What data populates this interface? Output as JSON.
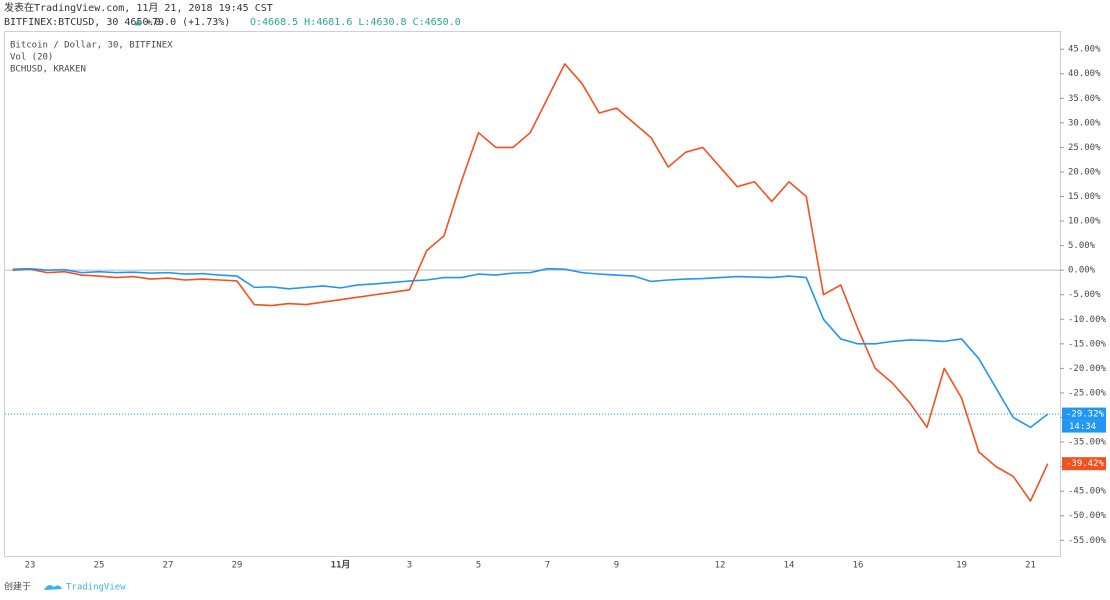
{
  "header": {
    "published": "发表在TradingView.com, 11月 21, 2018 19:45 CST",
    "symbol": "BITFINEX:BTCUSD, 30 4650.0",
    "arrow": "▲",
    "change": "+79.0 (+1.73%)",
    "ohlc": "O:4668.5 H:4681.6 L:4630.8 C:4650.0"
  },
  "footer": {
    "created": "创建于",
    "brand": "TradingView"
  },
  "chart_data": {
    "type": "line",
    "volume_label": "Vol (20)",
    "countdown": "14:34",
    "categories": [
      null,
      "23",
      null,
      null,
      null,
      "25",
      null,
      null,
      null,
      "27",
      null,
      null,
      null,
      "29",
      null,
      null,
      null,
      null,
      null,
      "11月",
      null,
      null,
      null,
      "3",
      null,
      null,
      null,
      "5",
      null,
      null,
      null,
      "7",
      null,
      null,
      null,
      "9",
      null,
      null,
      null,
      null,
      null,
      "12",
      null,
      null,
      null,
      "14",
      null,
      null,
      null,
      "16",
      null,
      null,
      null,
      null,
      null,
      "19",
      null,
      null,
      null,
      "21",
      null
    ],
    "ylim": [
      -58.2,
      48.5
    ],
    "yticks": [
      {
        "value": 45,
        "label": "45.00%"
      },
      {
        "value": 40,
        "label": "40.00%"
      },
      {
        "value": 35,
        "label": "35.00%"
      },
      {
        "value": 30,
        "label": "30.00%"
      },
      {
        "value": 25,
        "label": "25.00%"
      },
      {
        "value": 20,
        "label": "20.00%"
      },
      {
        "value": 15,
        "label": "15.00%"
      },
      {
        "value": 10,
        "label": "10.00%"
      },
      {
        "value": 5,
        "label": "5.00%"
      },
      {
        "value": 0,
        "label": "0.00%"
      },
      {
        "value": -5,
        "label": "-5.00%"
      },
      {
        "value": -10,
        "label": "-10.00%"
      },
      {
        "value": -15,
        "label": "-15.00%"
      },
      {
        "value": -20,
        "label": "-20.00%"
      },
      {
        "value": -25,
        "label": "-25.00%"
      },
      {
        "value": -30,
        "label": "-30.00%"
      },
      {
        "value": -35,
        "label": "-35.00%"
      },
      {
        "value": -40,
        "label": "-40.00%"
      },
      {
        "value": -45,
        "label": "-45.00%"
      },
      {
        "value": -50,
        "label": "-50.00%"
      },
      {
        "value": -55,
        "label": "-55.00%"
      }
    ],
    "series": [
      {
        "name": "Bitcoin / Dollar, 30, BITFINEX",
        "color": "#2196f3",
        "last_label": "-29.32%",
        "values": [
          0.2,
          0.3,
          0,
          0.1,
          -0.5,
          -0.3,
          -0.5,
          -0.4,
          -0.6,
          -0.5,
          -0.8,
          -0.7,
          -1,
          -1.2,
          -3.5,
          -3.4,
          -3.8,
          -3.5,
          -3.2,
          -3.6,
          -3,
          -2.8,
          -2.5,
          -2.2,
          -2,
          -1.5,
          -1.5,
          -0.8,
          -1,
          -0.6,
          -0.5,
          0.3,
          0.2,
          -0.5,
          -0.8,
          -1,
          -1.2,
          -2.3,
          -2,
          -1.8,
          -1.7,
          -1.5,
          -1.3,
          -1.4,
          -1.5,
          -1.2,
          -1.5,
          -10,
          -14,
          -15,
          -15,
          -14.5,
          -14.2,
          -14.3,
          -14.5,
          -14,
          -18,
          -24,
          -30,
          -32,
          -29.3
        ]
      },
      {
        "name": "BCHUSD, KRAKEN",
        "color": "#f4511e",
        "last_label": "-39.42%",
        "values": [
          0,
          0.2,
          -0.5,
          -0.3,
          -1,
          -1.2,
          -1.5,
          -1.3,
          -1.8,
          -1.6,
          -2,
          -1.8,
          -2,
          -2.2,
          -7,
          -7.2,
          -6.8,
          -7,
          -6.5,
          -6,
          -5.5,
          -5,
          -4.5,
          -4,
          4,
          7,
          18,
          28,
          25,
          25,
          28,
          35,
          42,
          38,
          32,
          33,
          30,
          27,
          21,
          24,
          25,
          21,
          17,
          18,
          14,
          18,
          15,
          -5,
          -3,
          -12,
          -20,
          -23,
          -27,
          -32,
          -20,
          -26,
          -37,
          -40,
          -42,
          -47,
          -39.4
        ]
      }
    ]
  }
}
